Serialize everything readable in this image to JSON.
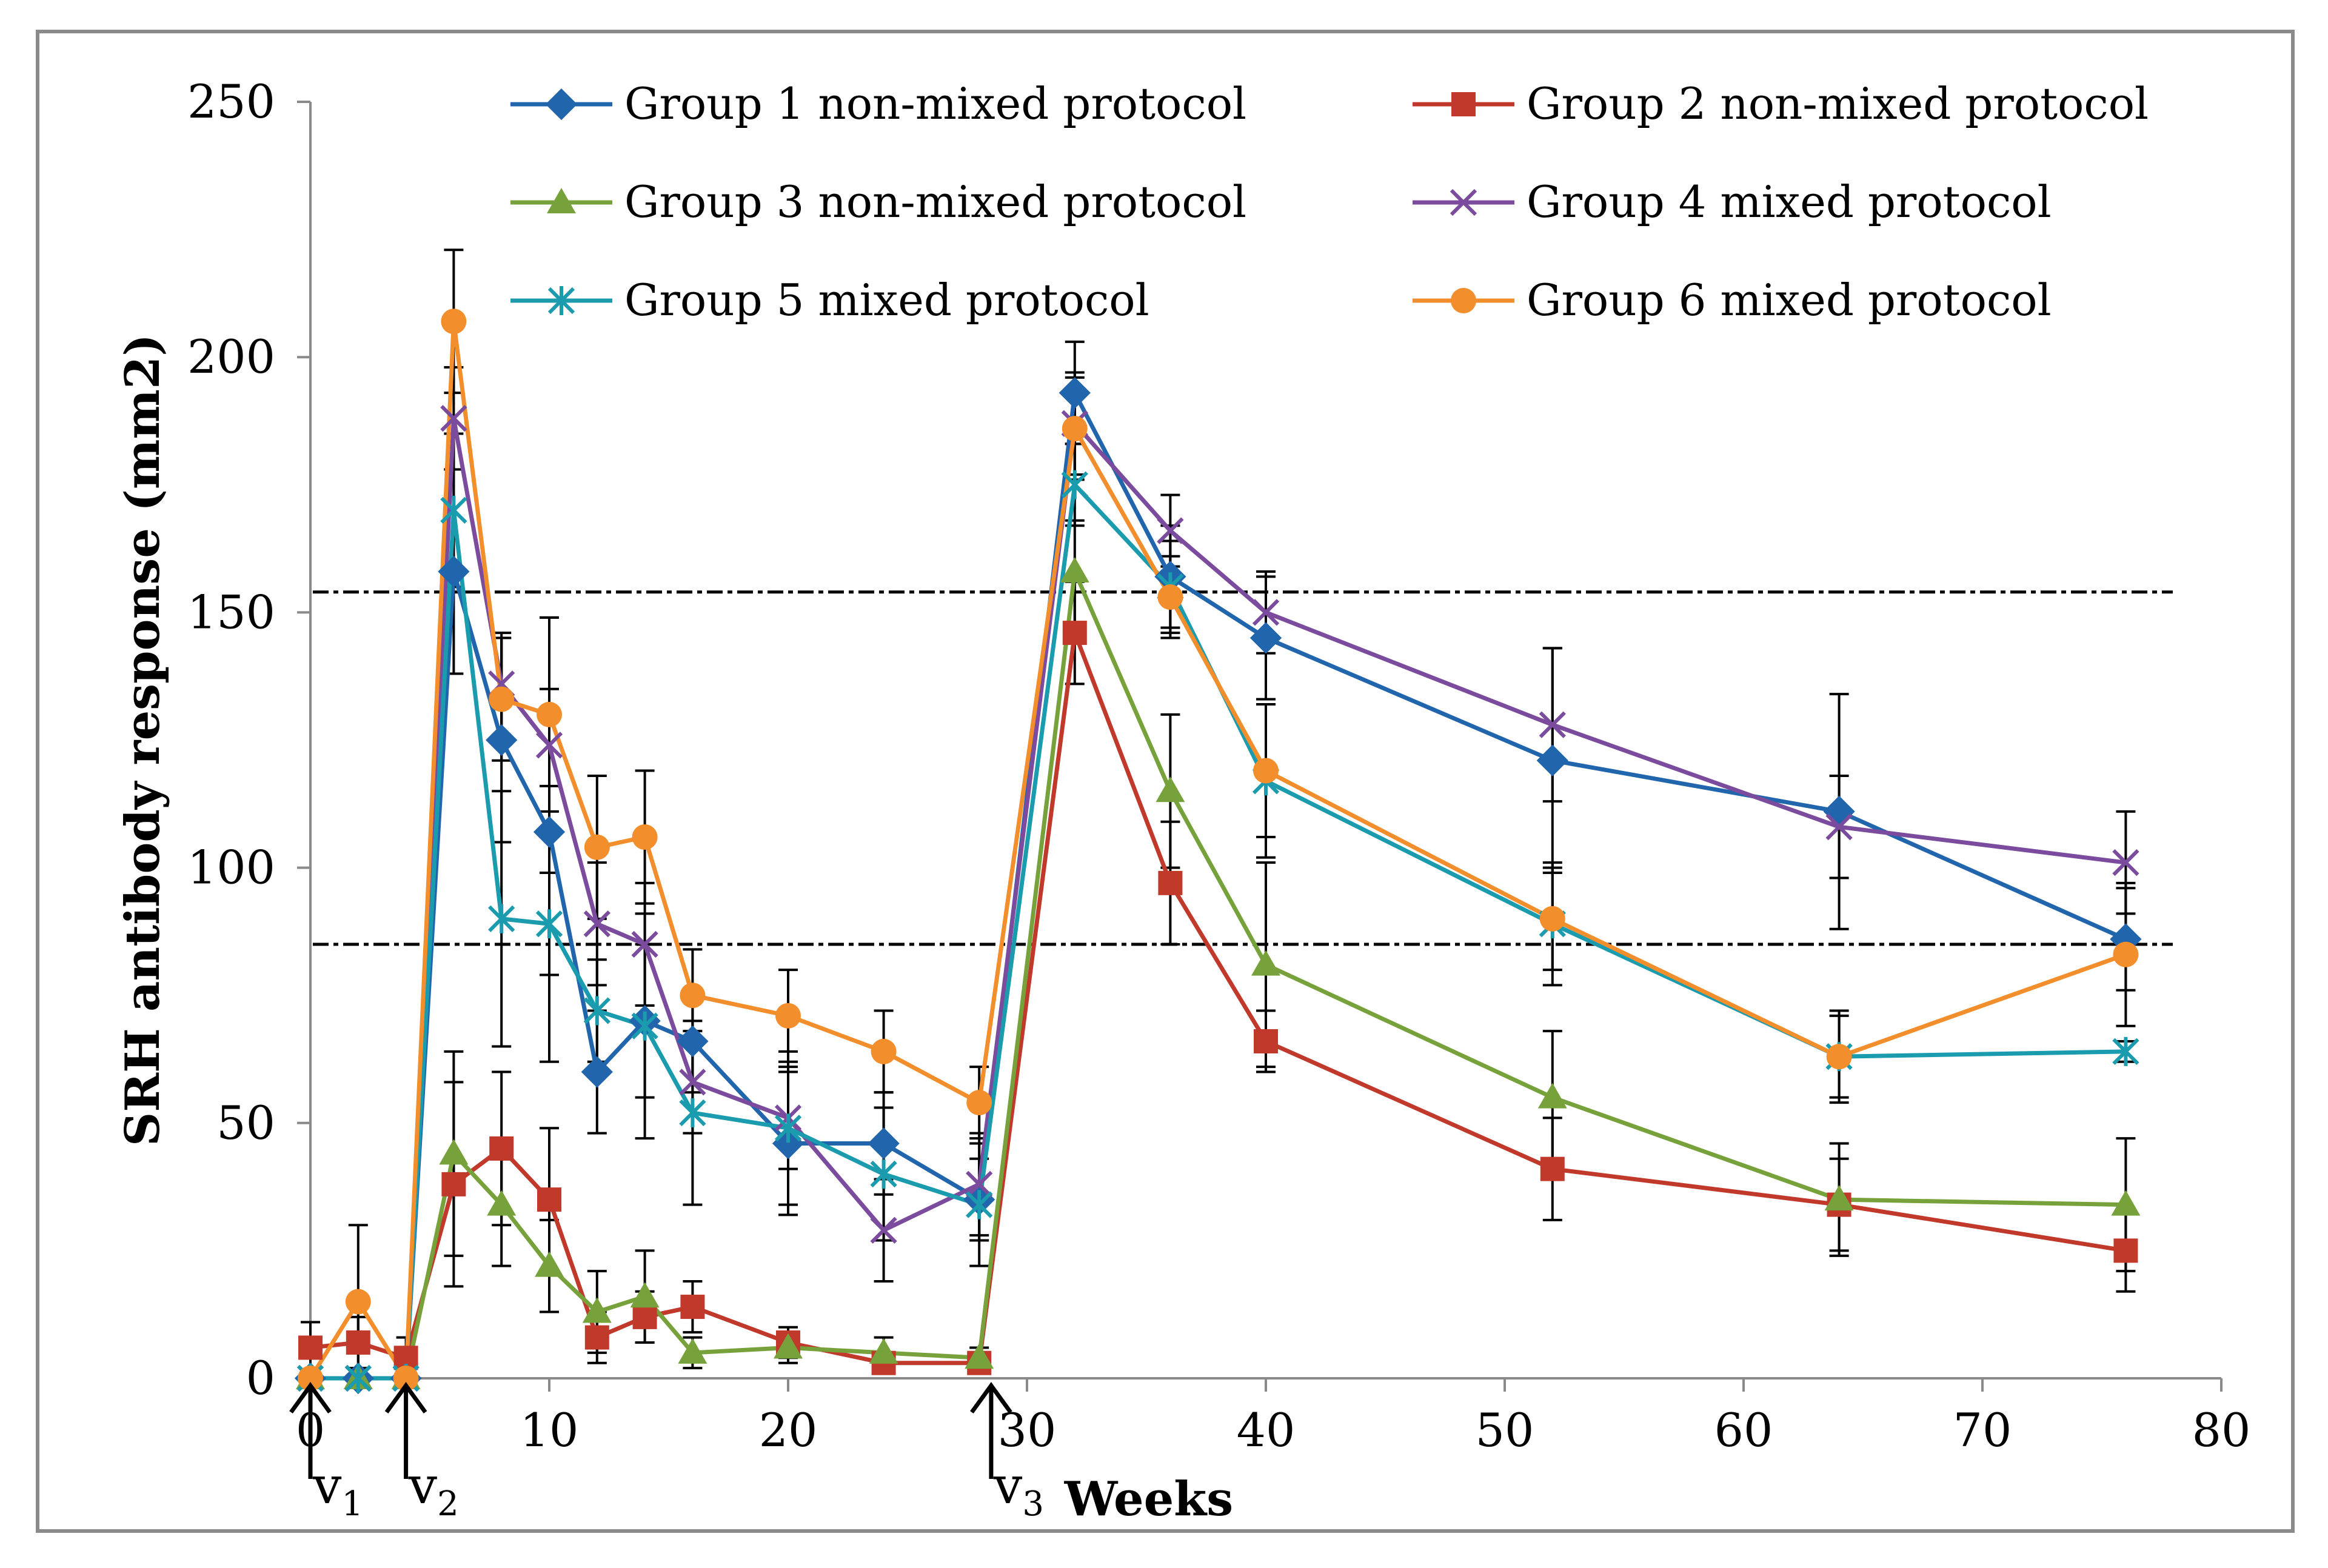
{
  "chart_data": {
    "type": "line",
    "title": "",
    "xlabel": "Weeks",
    "ylabel": "SRH antibody response (mm2)",
    "xlim": [
      0,
      80
    ],
    "ylim": [
      0,
      250
    ],
    "x_ticks": [
      0,
      10,
      20,
      30,
      40,
      50,
      60,
      70,
      80
    ],
    "y_ticks": [
      0,
      50,
      100,
      150,
      200,
      250
    ],
    "grid": false,
    "legend_position": "top",
    "reference_lines": [
      85,
      154
    ],
    "vaccination_markers": [
      {
        "label": "v",
        "sub": "1",
        "x": 0
      },
      {
        "label": "v",
        "sub": "2",
        "x": 4
      },
      {
        "label": "v",
        "sub": "3",
        "x": 28.5
      }
    ],
    "series": [
      {
        "name": "Group 1 non-mixed protocol",
        "color": "#2166AC",
        "marker": "diamond",
        "x": [
          0,
          2,
          4,
          6,
          8,
          10,
          12,
          14,
          16,
          20,
          24,
          28,
          32,
          36,
          40,
          52,
          64,
          76
        ],
        "values": [
          0,
          0,
          0,
          158,
          125,
          107,
          60,
          70,
          66,
          46,
          46,
          35,
          193,
          157,
          145,
          121,
          111,
          86
        ],
        "errors": [
          0,
          0,
          0,
          20,
          20,
          28,
          12,
          15,
          10,
          14,
          10,
          8,
          10,
          10,
          12,
          22,
          23,
          10
        ]
      },
      {
        "name": "Group 2 non-mixed protocol",
        "color": "#C0392B",
        "marker": "square",
        "x": [
          0,
          2,
          4,
          6,
          8,
          10,
          12,
          14,
          16,
          20,
          24,
          28,
          32,
          36,
          40,
          52,
          64,
          76
        ],
        "values": [
          6,
          7,
          4,
          38,
          45,
          35,
          8,
          12,
          14,
          7,
          3,
          3,
          146,
          97,
          66,
          41,
          34,
          25
        ],
        "errors": [
          5,
          5,
          4,
          20,
          15,
          14,
          5,
          5,
          5,
          3,
          2,
          2,
          10,
          12,
          6,
          10,
          9,
          8
        ]
      },
      {
        "name": "Group 3 non-mixed protocol",
        "color": "#77A23B",
        "marker": "triangle",
        "x": [
          0,
          2,
          4,
          6,
          8,
          10,
          12,
          14,
          16,
          20,
          24,
          28,
          32,
          36,
          40,
          52,
          64,
          76
        ],
        "values": [
          0,
          0,
          0,
          44,
          34,
          22,
          13,
          16,
          5,
          6,
          5,
          4,
          158,
          115,
          81,
          55,
          35,
          34
        ],
        "errors": [
          0,
          0,
          0,
          20,
          12,
          9,
          8,
          9,
          3,
          3,
          3,
          2,
          10,
          15,
          20,
          13,
          11,
          13
        ]
      },
      {
        "name": "Group 4 mixed protocol",
        "color": "#7B4B9E",
        "marker": "x",
        "x": [
          0,
          2,
          4,
          6,
          8,
          10,
          12,
          14,
          16,
          20,
          24,
          28,
          32,
          36,
          40,
          52,
          64,
          76
        ],
        "values": [
          0,
          0,
          0,
          188,
          136,
          124,
          89,
          85,
          58,
          51,
          29,
          38,
          187,
          166,
          150,
          128,
          108,
          101
        ],
        "errors": [
          0,
          0,
          0,
          10,
          10,
          25,
          12,
          12,
          10,
          10,
          10,
          10,
          10,
          7,
          8,
          15,
          10,
          10
        ]
      },
      {
        "name": "Group 5 mixed protocol",
        "color": "#1A9BAE",
        "marker": "asterisk",
        "x": [
          0,
          2,
          4,
          6,
          8,
          10,
          12,
          14,
          16,
          20,
          24,
          28,
          32,
          36,
          40,
          52,
          64,
          76
        ],
        "values": [
          0,
          0,
          0,
          170,
          90,
          89,
          72,
          69,
          52,
          49,
          40,
          34,
          175,
          155,
          117,
          89,
          63,
          64
        ],
        "errors": [
          0,
          0,
          0,
          15,
          25,
          27,
          10,
          22,
          18,
          15,
          13,
          12,
          8,
          9,
          15,
          12,
          8,
          2
        ]
      },
      {
        "name": "Group 6 mixed protocol",
        "color": "#F28E2B",
        "marker": "circle",
        "x": [
          0,
          2,
          4,
          6,
          8,
          10,
          12,
          14,
          16,
          20,
          24,
          28,
          32,
          36,
          40,
          52,
          64,
          76
        ],
        "values": [
          0,
          15,
          0,
          207,
          133,
          130,
          104,
          106,
          75,
          71,
          64,
          54,
          186,
          153,
          119,
          90,
          63,
          83
        ],
        "errors": [
          0,
          15,
          0,
          14,
          12,
          19,
          14,
          13,
          9,
          9,
          8,
          7,
          10,
          8,
          13,
          10,
          9,
          14
        ]
      }
    ]
  }
}
